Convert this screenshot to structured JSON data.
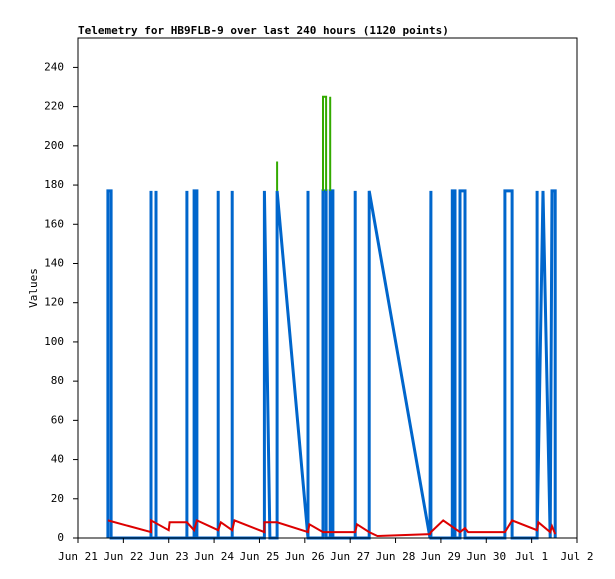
{
  "chart_data": {
    "type": "line",
    "title": "Telemetry for HB9FLB-9 over last 240 hours (1120 points)",
    "ylabel": "Values",
    "xlim": [
      0,
      11
    ],
    "ylim": [
      0,
      255
    ],
    "xticks": [
      {
        "value": 0,
        "label": "Jun 21"
      },
      {
        "value": 1,
        "label": "Jun 22"
      },
      {
        "value": 2,
        "label": "Jun 23"
      },
      {
        "value": 3,
        "label": "Jun 24"
      },
      {
        "value": 4,
        "label": "Jun 25"
      },
      {
        "value": 5,
        "label": "Jun 26"
      },
      {
        "value": 6,
        "label": "Jun 27"
      },
      {
        "value": 7,
        "label": "Jun 28"
      },
      {
        "value": 8,
        "label": "Jun 29"
      },
      {
        "value": 9,
        "label": "Jun 30"
      },
      {
        "value": 10,
        "label": "Jul 1"
      },
      {
        "value": 11,
        "label": "Jul 2"
      }
    ],
    "yticks": [
      0,
      20,
      40,
      60,
      80,
      100,
      120,
      140,
      160,
      180,
      200,
      220,
      240
    ],
    "series": [
      {
        "color": "#0066cc",
        "width": 3,
        "x": [
          0.66,
          0.66,
          0.73,
          0.73,
          1.61,
          1.61,
          1.61,
          1.72,
          1.72,
          1.72,
          2.4,
          2.4,
          2.4,
          2.56,
          2.56,
          2.62,
          2.62,
          3.09,
          3.09,
          3.09,
          3.4,
          3.4,
          3.4,
          4.11,
          4.11,
          4.23,
          4.39,
          4.39,
          5.07,
          5.07,
          5.07,
          5.4,
          5.4,
          5.47,
          5.47,
          5.56,
          5.56,
          5.62,
          5.62,
          6.11,
          6.11,
          6.11,
          6.42,
          6.42,
          7.76,
          7.78,
          7.78,
          8.25,
          8.25,
          8.31,
          8.31,
          8.42,
          8.42,
          8.53,
          8.53,
          9.41,
          9.41,
          9.57,
          9.57,
          10.12,
          10.12,
          10.12,
          10.25,
          10.41,
          10.45,
          10.52,
          10.52
        ],
        "values": [
          0,
          177,
          177,
          0,
          0,
          177,
          0,
          0,
          177,
          0,
          0,
          177,
          0,
          0,
          177,
          177,
          0,
          0,
          177,
          0,
          0,
          177,
          0,
          0,
          177,
          0,
          0,
          177,
          0,
          177,
          0,
          0,
          177,
          177,
          0,
          0,
          177,
          177,
          0,
          0,
          177,
          0,
          0,
          177,
          0,
          177,
          0,
          0,
          177,
          177,
          0,
          0,
          177,
          177,
          0,
          0,
          177,
          177,
          0,
          0,
          177,
          0,
          177,
          0,
          177,
          177,
          0
        ]
      },
      {
        "color": "#33aa00",
        "width": 2,
        "x": [
          4.39,
          4.39,
          4.4,
          5.4,
          5.4,
          5.47,
          5.47,
          5.48,
          5.56,
          5.56
        ],
        "values": [
          177,
          192,
          null,
          177,
          225,
          225,
          177,
          null,
          177,
          225
        ]
      },
      {
        "color": "#dd0000",
        "width": 2,
        "x": [
          0.66,
          1.61,
          1.61,
          2.0,
          2.02,
          2.4,
          2.56,
          2.62,
          3.09,
          3.15,
          3.4,
          3.45,
          4.11,
          4.11,
          4.39,
          5.07,
          5.1,
          5.4,
          5.62,
          6.11,
          6.15,
          6.42,
          6.6,
          7.76,
          7.78,
          8.05,
          8.42,
          8.53,
          8.6,
          9.41,
          9.57,
          10.12,
          10.15,
          10.41,
          10.45,
          10.52
        ],
        "values": [
          9,
          3,
          9,
          4,
          8,
          8,
          4,
          9,
          4,
          8,
          4,
          9,
          3,
          8,
          8,
          3,
          7,
          3,
          3,
          3,
          7,
          3,
          1,
          2,
          3,
          9,
          3,
          5,
          3,
          3,
          9,
          4,
          8,
          3,
          6,
          2
        ]
      }
    ]
  }
}
